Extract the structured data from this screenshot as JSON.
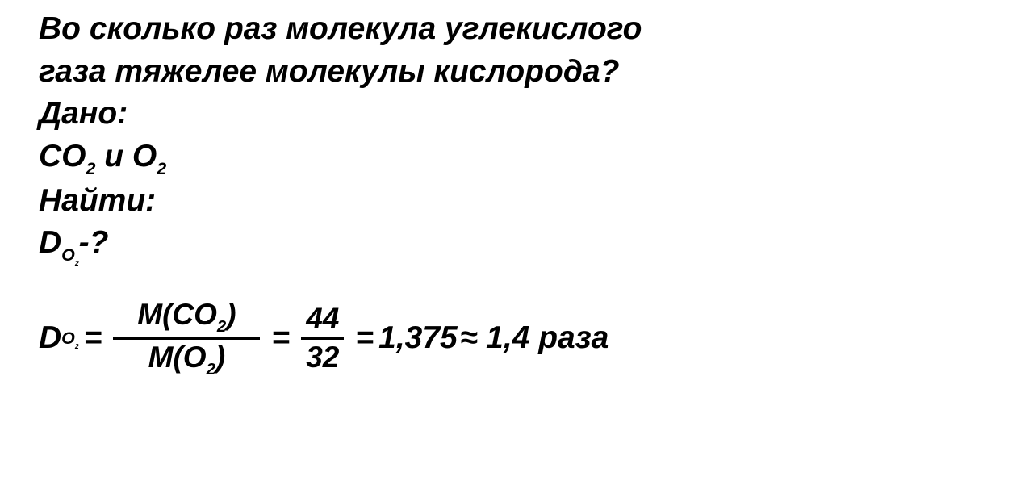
{
  "question_line1": "Во сколько раз молекула углекислого",
  "question_line2": "газа тяжелее молекулы кислорода?",
  "given_label": "Дано:",
  "given_co2": "CO",
  "given_co2_sub": "2",
  "given_and": " и O",
  "given_o2_sub": "2",
  "find_label": "Найти:",
  "find_D": "D",
  "find_O": "O",
  "find_sub2": "2",
  "find_q": "-?",
  "formula": {
    "D": "D",
    "O": "O",
    "sub2": "2",
    "eq": "=",
    "num": "M(CO",
    "num_sub": "2",
    "num_close": ")",
    "den": "M(O",
    "den_sub": "2",
    "den_close": ")",
    "val_num": "44",
    "val_den": "32",
    "result": "1,375",
    "approx": "≈",
    "rounded": "1,4 раза"
  },
  "colors": {
    "bg": "#ffffff",
    "text": "#000000"
  },
  "font": {
    "family": "Arial",
    "style": "italic",
    "weight": "bold",
    "size_pt": 30
  }
}
